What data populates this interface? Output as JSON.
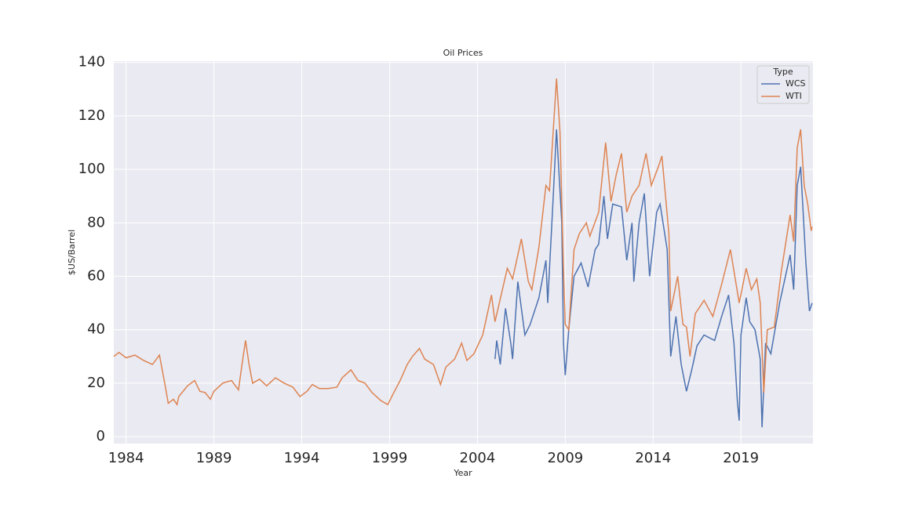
{
  "chart_data": {
    "type": "line",
    "title": "Oil Prices",
    "x_label": "Year",
    "y_label": "$US/Barrel",
    "legend_title": "Type",
    "legend_position": "upper right",
    "grid": true,
    "background": "#eaeaf2",
    "xlim": [
      1983.3,
      2023.1
    ],
    "xticks": [
      1984,
      1989,
      1994,
      1999,
      2004,
      2009,
      2014,
      2019
    ],
    "ylim": [
      -2.6,
      140.5
    ],
    "yticks": [
      0,
      20,
      40,
      60,
      80,
      100,
      120,
      140
    ],
    "series": [
      {
        "name": "WCS",
        "color": "#4c72b0",
        "x": [
          2005.0,
          2005.1,
          2005.3,
          2005.6,
          2005.9,
          2006.0,
          2006.3,
          2006.7,
          2007.0,
          2007.5,
          2007.9,
          2008.0,
          2008.3,
          2008.5,
          2008.8,
          2008.9,
          2009.0,
          2009.2,
          2009.5,
          2009.9,
          2010.3,
          2010.7,
          2010.9,
          2011.2,
          2011.4,
          2011.7,
          2012.2,
          2012.5,
          2012.8,
          2012.9,
          2013.2,
          2013.5,
          2013.8,
          2014.2,
          2014.4,
          2014.8,
          2015.0,
          2015.3,
          2015.6,
          2015.9,
          2016.2,
          2016.5,
          2016.9,
          2017.5,
          2017.9,
          2018.3,
          2018.6,
          2018.8,
          2018.9,
          2019.0,
          2019.3,
          2019.5,
          2019.8,
          2020.1,
          2020.2,
          2020.4,
          2020.7,
          2021.2,
          2021.8,
          2022.0,
          2022.2,
          2022.4,
          2022.7,
          2022.9,
          2023.05
        ],
        "values": [
          29,
          36,
          27,
          48,
          35,
          29,
          58,
          38,
          42,
          52,
          66,
          50,
          88,
          115,
          80,
          35,
          23,
          40,
          60,
          65,
          56,
          70,
          72,
          90,
          74,
          87,
          86,
          66,
          80,
          58,
          80,
          91,
          60,
          84,
          87,
          70,
          30,
          45,
          27,
          17,
          25,
          34,
          38,
          36,
          45,
          53,
          35,
          13,
          6,
          38,
          52,
          43,
          40,
          29,
          3.5,
          35,
          31,
          50,
          68,
          55,
          94,
          101,
          65,
          47,
          50
        ]
      },
      {
        "name": "WTI",
        "color": "#dd8452",
        "x": [
          1983.3,
          1983.6,
          1984.0,
          1984.5,
          1985.0,
          1985.5,
          1985.9,
          1986.2,
          1986.4,
          1986.7,
          1986.9,
          1987.0,
          1987.5,
          1987.9,
          1988.2,
          1988.5,
          1988.8,
          1989.0,
          1989.5,
          1990.0,
          1990.4,
          1990.6,
          1990.8,
          1991.0,
          1991.2,
          1991.6,
          1992.0,
          1992.5,
          1993.0,
          1993.5,
          1993.9,
          1994.3,
          1994.6,
          1995.0,
          1995.5,
          1996.0,
          1996.3,
          1996.8,
          1997.2,
          1997.6,
          1998.0,
          1998.5,
          1998.9,
          1999.2,
          1999.6,
          2000.0,
          2000.3,
          2000.7,
          2001.0,
          2001.5,
          2001.9,
          2002.2,
          2002.7,
          2003.1,
          2003.4,
          2003.8,
          2004.3,
          2004.8,
          2005.0,
          2005.7,
          2006.0,
          2006.5,
          2006.9,
          2007.1,
          2007.5,
          2007.9,
          2008.1,
          2008.5,
          2008.7,
          2008.9,
          2009.0,
          2009.2,
          2009.5,
          2009.8,
          2010.2,
          2010.4,
          2010.9,
          2011.3,
          2011.6,
          2011.9,
          2012.2,
          2012.5,
          2012.8,
          2013.2,
          2013.6,
          2013.9,
          2014.3,
          2014.5,
          2014.9,
          2015.0,
          2015.4,
          2015.7,
          2015.9,
          2016.1,
          2016.4,
          2016.9,
          2017.4,
          2017.9,
          2018.4,
          2018.9,
          2019.3,
          2019.6,
          2019.9,
          2020.1,
          2020.3,
          2020.5,
          2020.9,
          2021.3,
          2021.8,
          2022.0,
          2022.2,
          2022.4,
          2022.6,
          2022.8,
          2023.0,
          2023.05
        ],
        "values": [
          30,
          31.5,
          29.5,
          30.5,
          28.5,
          27,
          30.5,
          20,
          12.5,
          14,
          12,
          15,
          19,
          21,
          17,
          16.5,
          14,
          17,
          20,
          21,
          17.5,
          27,
          36,
          27,
          20,
          21.5,
          19,
          22,
          20,
          18.5,
          15,
          17,
          19.5,
          18,
          18,
          18.5,
          22,
          25,
          21,
          20,
          16.5,
          13.5,
          12,
          16,
          21,
          27,
          30,
          33,
          29,
          27,
          19.5,
          26,
          29,
          35,
          28.5,
          31,
          38,
          53,
          43,
          63,
          59,
          74,
          58,
          55,
          71,
          94,
          92,
          134,
          114,
          62,
          42,
          40,
          70,
          76,
          80,
          75,
          84,
          110,
          88,
          98,
          106,
          84,
          90,
          94,
          106,
          94,
          101,
          105,
          76,
          47,
          60,
          42,
          41,
          30,
          46,
          51,
          45,
          57,
          70,
          50,
          63,
          55,
          59,
          50,
          16.5,
          40,
          41,
          62,
          83,
          73,
          108,
          115,
          94,
          87,
          77,
          78.5
        ]
      }
    ]
  }
}
